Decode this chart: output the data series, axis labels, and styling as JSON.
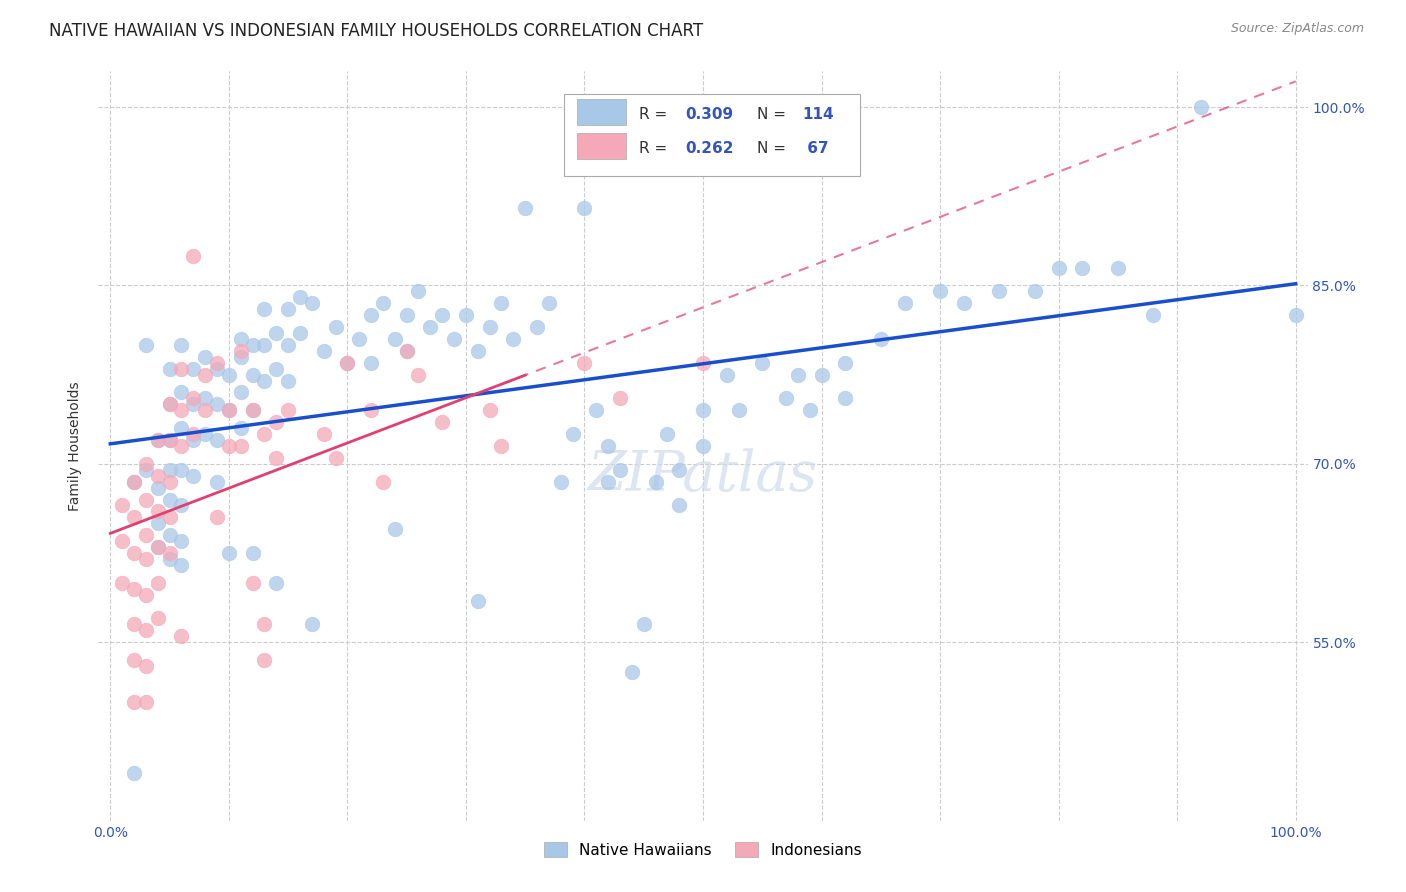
{
  "title": "NATIVE HAWAIIAN VS INDONESIAN FAMILY HOUSEHOLDS CORRELATION CHART",
  "source": "Source: ZipAtlas.com",
  "ylabel": "Family Households",
  "ytick_labels": [
    "100.0%",
    "85.0%",
    "70.0%",
    "55.0%"
  ],
  "ytick_values": [
    1.0,
    0.85,
    0.7,
    0.55
  ],
  "xlim": [
    -0.01,
    1.01
  ],
  "ylim": [
    0.4,
    1.03
  ],
  "blue_R": 0.309,
  "blue_N": 114,
  "pink_R": 0.262,
  "pink_N": 67,
  "blue_color": "#a8c8e8",
  "pink_color": "#f4a8b8",
  "blue_line_color": "#1a4fcc",
  "pink_line_color": "#e04070",
  "background_color": "#ffffff",
  "grid_color": "#cccccc",
  "title_fontsize": 12,
  "axis_label_fontsize": 10,
  "tick_fontsize": 10,
  "blue_scatter": [
    [
      0.02,
      0.685
    ],
    [
      0.02,
      0.44
    ],
    [
      0.03,
      0.695
    ],
    [
      0.03,
      0.8
    ],
    [
      0.04,
      0.72
    ],
    [
      0.04,
      0.68
    ],
    [
      0.04,
      0.65
    ],
    [
      0.04,
      0.63
    ],
    [
      0.05,
      0.78
    ],
    [
      0.05,
      0.75
    ],
    [
      0.05,
      0.72
    ],
    [
      0.05,
      0.695
    ],
    [
      0.05,
      0.67
    ],
    [
      0.05,
      0.64
    ],
    [
      0.05,
      0.62
    ],
    [
      0.06,
      0.8
    ],
    [
      0.06,
      0.76
    ],
    [
      0.06,
      0.73
    ],
    [
      0.06,
      0.695
    ],
    [
      0.06,
      0.665
    ],
    [
      0.06,
      0.635
    ],
    [
      0.06,
      0.615
    ],
    [
      0.07,
      0.78
    ],
    [
      0.07,
      0.75
    ],
    [
      0.07,
      0.72
    ],
    [
      0.07,
      0.69
    ],
    [
      0.08,
      0.79
    ],
    [
      0.08,
      0.755
    ],
    [
      0.08,
      0.725
    ],
    [
      0.09,
      0.78
    ],
    [
      0.09,
      0.75
    ],
    [
      0.09,
      0.72
    ],
    [
      0.09,
      0.685
    ],
    [
      0.1,
      0.775
    ],
    [
      0.1,
      0.745
    ],
    [
      0.1,
      0.625
    ],
    [
      0.11,
      0.805
    ],
    [
      0.11,
      0.79
    ],
    [
      0.11,
      0.76
    ],
    [
      0.11,
      0.73
    ],
    [
      0.12,
      0.8
    ],
    [
      0.12,
      0.775
    ],
    [
      0.12,
      0.745
    ],
    [
      0.12,
      0.625
    ],
    [
      0.13,
      0.83
    ],
    [
      0.13,
      0.8
    ],
    [
      0.13,
      0.77
    ],
    [
      0.14,
      0.81
    ],
    [
      0.14,
      0.78
    ],
    [
      0.14,
      0.6
    ],
    [
      0.15,
      0.83
    ],
    [
      0.15,
      0.8
    ],
    [
      0.15,
      0.77
    ],
    [
      0.16,
      0.84
    ],
    [
      0.16,
      0.81
    ],
    [
      0.17,
      0.835
    ],
    [
      0.17,
      0.565
    ],
    [
      0.18,
      0.795
    ],
    [
      0.19,
      0.815
    ],
    [
      0.2,
      0.785
    ],
    [
      0.21,
      0.805
    ],
    [
      0.22,
      0.825
    ],
    [
      0.22,
      0.785
    ],
    [
      0.23,
      0.835
    ],
    [
      0.24,
      0.805
    ],
    [
      0.24,
      0.645
    ],
    [
      0.25,
      0.825
    ],
    [
      0.25,
      0.795
    ],
    [
      0.26,
      0.845
    ],
    [
      0.27,
      0.815
    ],
    [
      0.28,
      0.825
    ],
    [
      0.29,
      0.805
    ],
    [
      0.3,
      0.825
    ],
    [
      0.31,
      0.795
    ],
    [
      0.31,
      0.585
    ],
    [
      0.32,
      0.815
    ],
    [
      0.33,
      0.835
    ],
    [
      0.34,
      0.805
    ],
    [
      0.35,
      0.915
    ],
    [
      0.36,
      0.815
    ],
    [
      0.37,
      0.835
    ],
    [
      0.38,
      0.685
    ],
    [
      0.39,
      0.725
    ],
    [
      0.4,
      0.915
    ],
    [
      0.41,
      0.745
    ],
    [
      0.42,
      0.715
    ],
    [
      0.42,
      0.685
    ],
    [
      0.43,
      0.695
    ],
    [
      0.44,
      0.525
    ],
    [
      0.45,
      0.565
    ],
    [
      0.46,
      0.685
    ],
    [
      0.47,
      0.725
    ],
    [
      0.48,
      0.695
    ],
    [
      0.48,
      0.665
    ],
    [
      0.5,
      0.745
    ],
    [
      0.5,
      0.715
    ],
    [
      0.52,
      0.775
    ],
    [
      0.53,
      0.745
    ],
    [
      0.55,
      0.785
    ],
    [
      0.57,
      0.755
    ],
    [
      0.58,
      0.775
    ],
    [
      0.59,
      0.745
    ],
    [
      0.6,
      0.775
    ],
    [
      0.62,
      0.785
    ],
    [
      0.62,
      0.755
    ],
    [
      0.65,
      0.805
    ],
    [
      0.67,
      0.835
    ],
    [
      0.7,
      0.845
    ],
    [
      0.72,
      0.835
    ],
    [
      0.75,
      0.845
    ],
    [
      0.78,
      0.845
    ],
    [
      0.8,
      0.865
    ],
    [
      0.82,
      0.865
    ],
    [
      0.85,
      0.865
    ],
    [
      0.88,
      0.825
    ],
    [
      0.92,
      1.0
    ],
    [
      1.0,
      0.825
    ]
  ],
  "pink_scatter": [
    [
      0.01,
      0.665
    ],
    [
      0.01,
      0.635
    ],
    [
      0.01,
      0.6
    ],
    [
      0.02,
      0.685
    ],
    [
      0.02,
      0.655
    ],
    [
      0.02,
      0.625
    ],
    [
      0.02,
      0.595
    ],
    [
      0.02,
      0.565
    ],
    [
      0.02,
      0.535
    ],
    [
      0.02,
      0.5
    ],
    [
      0.03,
      0.7
    ],
    [
      0.03,
      0.67
    ],
    [
      0.03,
      0.64
    ],
    [
      0.03,
      0.62
    ],
    [
      0.03,
      0.59
    ],
    [
      0.03,
      0.56
    ],
    [
      0.03,
      0.53
    ],
    [
      0.03,
      0.5
    ],
    [
      0.04,
      0.72
    ],
    [
      0.04,
      0.69
    ],
    [
      0.04,
      0.66
    ],
    [
      0.04,
      0.63
    ],
    [
      0.04,
      0.6
    ],
    [
      0.04,
      0.57
    ],
    [
      0.05,
      0.75
    ],
    [
      0.05,
      0.72
    ],
    [
      0.05,
      0.685
    ],
    [
      0.05,
      0.655
    ],
    [
      0.05,
      0.625
    ],
    [
      0.06,
      0.78
    ],
    [
      0.06,
      0.745
    ],
    [
      0.06,
      0.715
    ],
    [
      0.06,
      0.555
    ],
    [
      0.07,
      0.875
    ],
    [
      0.07,
      0.755
    ],
    [
      0.07,
      0.725
    ],
    [
      0.08,
      0.775
    ],
    [
      0.08,
      0.745
    ],
    [
      0.09,
      0.785
    ],
    [
      0.09,
      0.655
    ],
    [
      0.1,
      0.745
    ],
    [
      0.1,
      0.715
    ],
    [
      0.11,
      0.795
    ],
    [
      0.11,
      0.715
    ],
    [
      0.12,
      0.745
    ],
    [
      0.12,
      0.6
    ],
    [
      0.13,
      0.725
    ],
    [
      0.13,
      0.565
    ],
    [
      0.13,
      0.535
    ],
    [
      0.14,
      0.735
    ],
    [
      0.14,
      0.705
    ],
    [
      0.15,
      0.745
    ],
    [
      0.18,
      0.725
    ],
    [
      0.19,
      0.705
    ],
    [
      0.2,
      0.785
    ],
    [
      0.22,
      0.745
    ],
    [
      0.23,
      0.685
    ],
    [
      0.25,
      0.795
    ],
    [
      0.26,
      0.775
    ],
    [
      0.28,
      0.735
    ],
    [
      0.32,
      0.745
    ],
    [
      0.33,
      0.715
    ],
    [
      0.4,
      0.785
    ],
    [
      0.43,
      0.755
    ],
    [
      0.5,
      0.785
    ]
  ]
}
